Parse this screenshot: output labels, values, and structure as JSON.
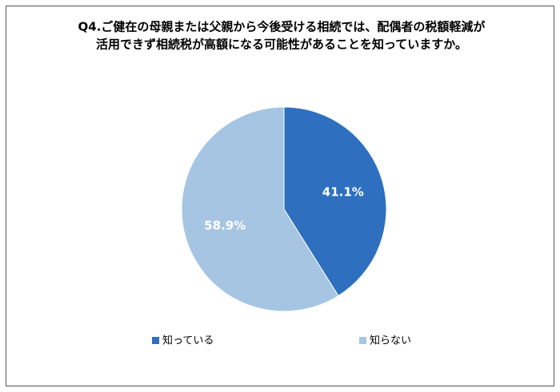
{
  "chart_data": {
    "type": "pie",
    "title": [
      "Q4.ご健在の母親または父親から今後受ける相続では、配偶者の税額軽減が",
      "活用できず相続税が高額になる可能性があることを知っていますか。"
    ],
    "categories": [
      "知っている",
      "知らない"
    ],
    "values": [
      41.1,
      58.9
    ],
    "value_labels": [
      "41.1%",
      "58.9%"
    ],
    "colors": [
      "#2e70bf",
      "#a5c5e3"
    ]
  }
}
